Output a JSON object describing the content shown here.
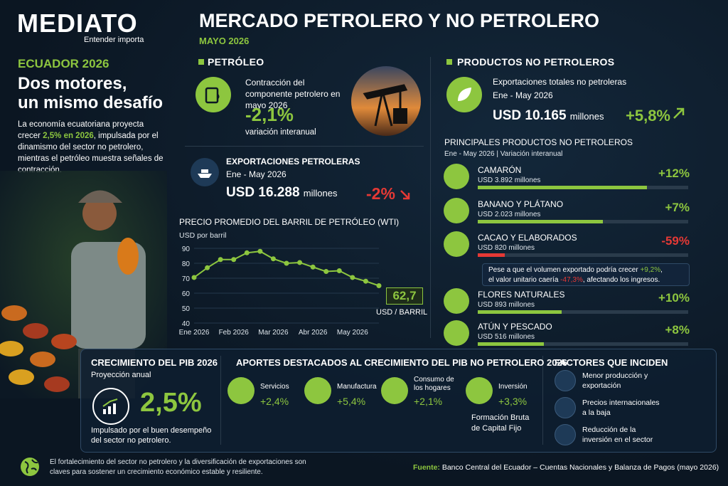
{
  "brand": {
    "name": "MEDIATO",
    "tagline": "Entender importa"
  },
  "header": {
    "title": "MERCADO PETROLERO Y NO PETROLERO",
    "subtitle": "MAYO 2026"
  },
  "intro": {
    "kicker": "ECUADOR 2026",
    "headline": [
      "Dos motores,",
      "un mismo desafío"
    ],
    "body": [
      "La economía ecuatoriana proyecta crecer ",
      "2,5% en 2026",
      ", impulsada por el dinamismo del sector no petrolero, mientras el petróleo muestra señales de contracción."
    ]
  },
  "petroleo": {
    "title": "PETRÓLEO",
    "contraction_label": "Contracción del componente petrolero en mayo 2026",
    "contraction_value": "-2,1%",
    "contraction_note": "variación interanual",
    "exports_title": "EXPORTACIONES PETROLERAS",
    "exports_period": "Ene - May 2026",
    "exports_value": "USD 16.288",
    "exports_unit": "millones",
    "exports_change": "-2%"
  },
  "chart_data": {
    "type": "line",
    "title": "PRECIO PROMEDIO DEL BARRIL DE PETRÓLEO (WTI)",
    "y_label": "USD por barril",
    "categories": [
      "Ene 2026",
      null,
      null,
      "Feb 2026",
      null,
      null,
      "Mar 2026",
      null,
      null,
      "Abr 2026",
      null,
      null,
      "May 2026",
      null,
      null
    ],
    "values": [
      70.5,
      77,
      82.5,
      82.5,
      87,
      88,
      83,
      80,
      80.5,
      77.5,
      74.5,
      75,
      70.5,
      68,
      65
    ],
    "color": "#8dc63f",
    "ylim": [
      40,
      90
    ],
    "yticks": [
      40,
      50,
      60,
      70,
      80,
      90
    ],
    "callout": {
      "value": 62.7,
      "label": "62,7"
    },
    "callout_unit": "USD / BARRIL"
  },
  "no_petroleros": {
    "title": "PRODUCTOS NO PETROLEROS",
    "total_label": "Exportaciones totales no petroleras",
    "period": "Ene - May 2026",
    "value": "USD 10.165",
    "unit": "millones",
    "change": "+5,8%",
    "products_title": "PRINCIPALES PRODUCTOS NO PETROLEROS",
    "products_subtitle": "Ene - May 2026 | Variación interanual",
    "products": [
      {
        "name": "CAMARÓN",
        "value": "USD 3.892 millones",
        "change": "+12%"
      },
      {
        "name": "BANANO Y PLÁTANO",
        "value": "USD 2.023 millones",
        "change": "+7%"
      },
      {
        "name": "CACAO Y ELABORADOS",
        "value": "USD 820 millones",
        "change": "-59%"
      },
      {
        "name": "FLORES NATURALES",
        "value": "USD 893 millones",
        "change": "+10%"
      },
      {
        "name": "ATÚN Y PESCADO",
        "value": "USD 516 millones",
        "change": "+8%"
      }
    ],
    "note": [
      "Pese a que el volumen exportado podría crecer ",
      "+9,2%",
      ",",
      "el valor unitario caería ",
      "-47,3%",
      ", afectando los ingresos."
    ]
  },
  "pib": {
    "title": "CRECIMIENTO DEL PIB 2026",
    "subtitle": "Proyección anual",
    "value": "2,5%",
    "note": "Impulsado por el buen desempeño del sector no petrolero."
  },
  "aportes": {
    "title": "APORTES DESTACADOS AL CRECIMIENTO DEL PIB NO PETROLERO 2026",
    "items": [
      {
        "label": "Servicios",
        "value": "+2,4%"
      },
      {
        "label": "Manufactura",
        "value": "+5,4%"
      },
      {
        "label": "Consumo de los hogares",
        "value": "+2,1%"
      },
      {
        "label": "Inversión",
        "value": "+3,3%"
      }
    ],
    "investment_note": "Formación Bruta de Capital Fijo"
  },
  "factores": {
    "title": "FACTORES QUE INCIDEN",
    "items": [
      "Menor producción y exportación",
      "Precios internacionales a la baja",
      "Reducción de la inversión en el sector"
    ]
  },
  "footer": {
    "text": "El fortalecimiento del sector no petrolero y la diversificación de exportaciones son claves para sostener un crecimiento económico estable y resiliente.",
    "source_label": "Fuente:",
    "source": "Banco Central del Ecuador – Cuentas Nacionales y Balanza de Pagos (mayo 2026)"
  }
}
